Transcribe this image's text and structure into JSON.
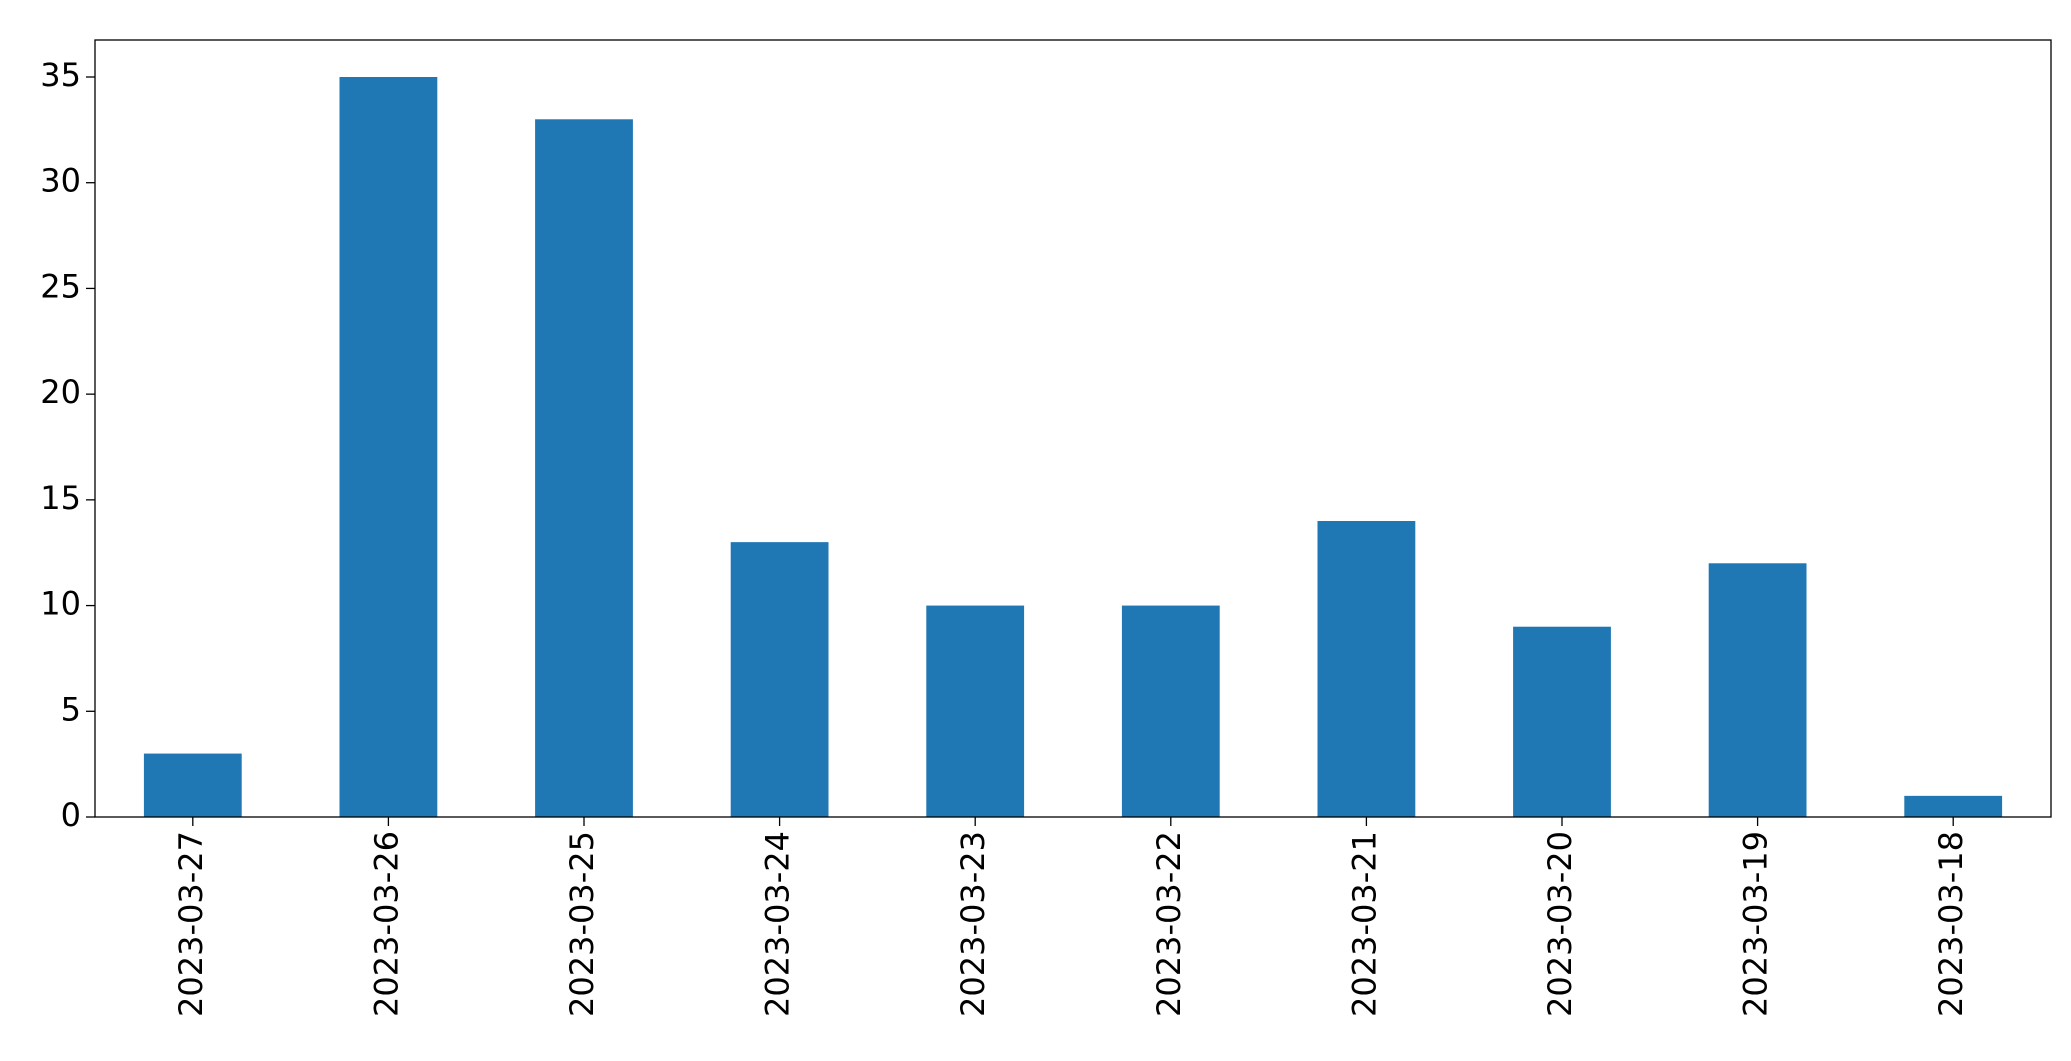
{
  "chart_data": {
    "type": "bar",
    "categories": [
      "2023-03-27",
      "2023-03-26",
      "2023-03-25",
      "2023-03-24",
      "2023-03-23",
      "2023-03-22",
      "2023-03-21",
      "2023-03-20",
      "2023-03-19",
      "2023-03-18"
    ],
    "values": [
      3,
      35,
      33,
      13,
      10,
      10,
      14,
      9,
      12,
      1
    ],
    "color": "#1f77b4",
    "ylim": [
      0,
      36.75
    ],
    "yticks": [
      0,
      5,
      10,
      15,
      20,
      25,
      30,
      35
    ],
    "grid": false
  }
}
